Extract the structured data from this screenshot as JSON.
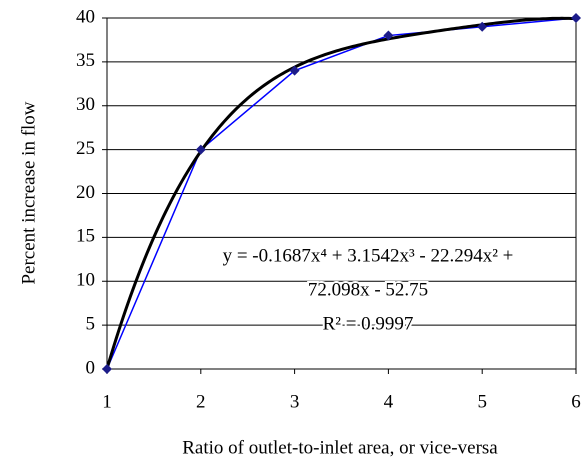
{
  "chart_data": {
    "type": "line",
    "x_label": "Ratio of outlet-to-inlet area, or vice-versa",
    "y_label": "Percent increase in flow",
    "x": [
      1,
      2,
      3,
      4,
      5,
      6
    ],
    "series": [
      {
        "name": "Percent increase in flow",
        "color": "#0000ff",
        "marker_color": "#1c1c8a",
        "values": [
          0,
          25,
          34,
          38,
          39,
          40
        ]
      }
    ],
    "trendline": {
      "type": "polynomial",
      "color": "#000000",
      "coefficients": [
        -0.1687,
        3.1542,
        -22.294,
        72.098,
        -52.75
      ]
    },
    "annotation": [
      "y = -0.1687x⁴ + 3.1542x³ - 22.294x² +",
      "72.098x - 52.75",
      "R² = 0.9997"
    ],
    "xlim": [
      1,
      6
    ],
    "xticks": [
      1,
      2,
      3,
      4,
      5,
      6
    ],
    "ylim": [
      0,
      40
    ],
    "yticks": [
      0,
      5,
      10,
      15,
      20,
      25,
      30,
      35,
      40
    ],
    "grid": true
  }
}
